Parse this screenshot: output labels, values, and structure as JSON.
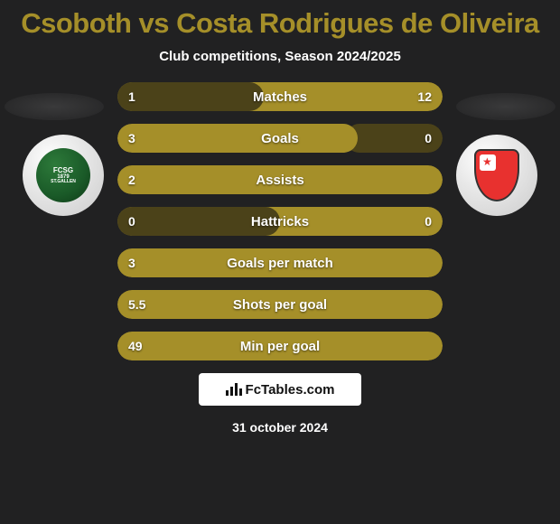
{
  "title": "Csoboth vs Costa Rodrigues de Oliveira",
  "subtitle": "Club competitions, Season 2024/2025",
  "date": "31 october 2024",
  "brand": "FcTables.com",
  "colors": {
    "accent": "#a58f29",
    "bar_dark": "#4b4219",
    "text": "#ffffff",
    "background": "#212122"
  },
  "players": {
    "left": {
      "club": "FC St. Gallen",
      "club_short": "FCSG"
    },
    "right": {
      "club": "FC Sion",
      "club_short": "SION"
    }
  },
  "stats": [
    {
      "label": "Matches",
      "type": "dual",
      "left_value": "1",
      "right_value": "12",
      "left_width_pct": 45,
      "right_width_pct": 100,
      "left_color": "#4b4219",
      "right_color": "#a58f29"
    },
    {
      "label": "Goals",
      "type": "dual",
      "left_value": "3",
      "right_value": "0",
      "left_width_pct": 74,
      "right_width_pct": 30,
      "left_color": "#a58f29",
      "right_color": "#4b4219"
    },
    {
      "label": "Assists",
      "type": "single",
      "left_value": "2",
      "right_value": "",
      "fill_width_pct": 100,
      "fill_color": "#a58f29"
    },
    {
      "label": "Hattricks",
      "type": "dual",
      "left_value": "0",
      "right_value": "0",
      "left_width_pct": 50,
      "right_width_pct": 100,
      "left_color": "#4b4219",
      "right_color": "#a58f29"
    },
    {
      "label": "Goals per match",
      "type": "single",
      "left_value": "3",
      "right_value": "",
      "fill_width_pct": 100,
      "fill_color": "#a58f29"
    },
    {
      "label": "Shots per goal",
      "type": "single",
      "left_value": "5.5",
      "right_value": "",
      "fill_width_pct": 100,
      "fill_color": "#a58f29"
    },
    {
      "label": "Min per goal",
      "type": "single",
      "left_value": "49",
      "right_value": "",
      "fill_width_pct": 100,
      "fill_color": "#a58f29"
    }
  ]
}
